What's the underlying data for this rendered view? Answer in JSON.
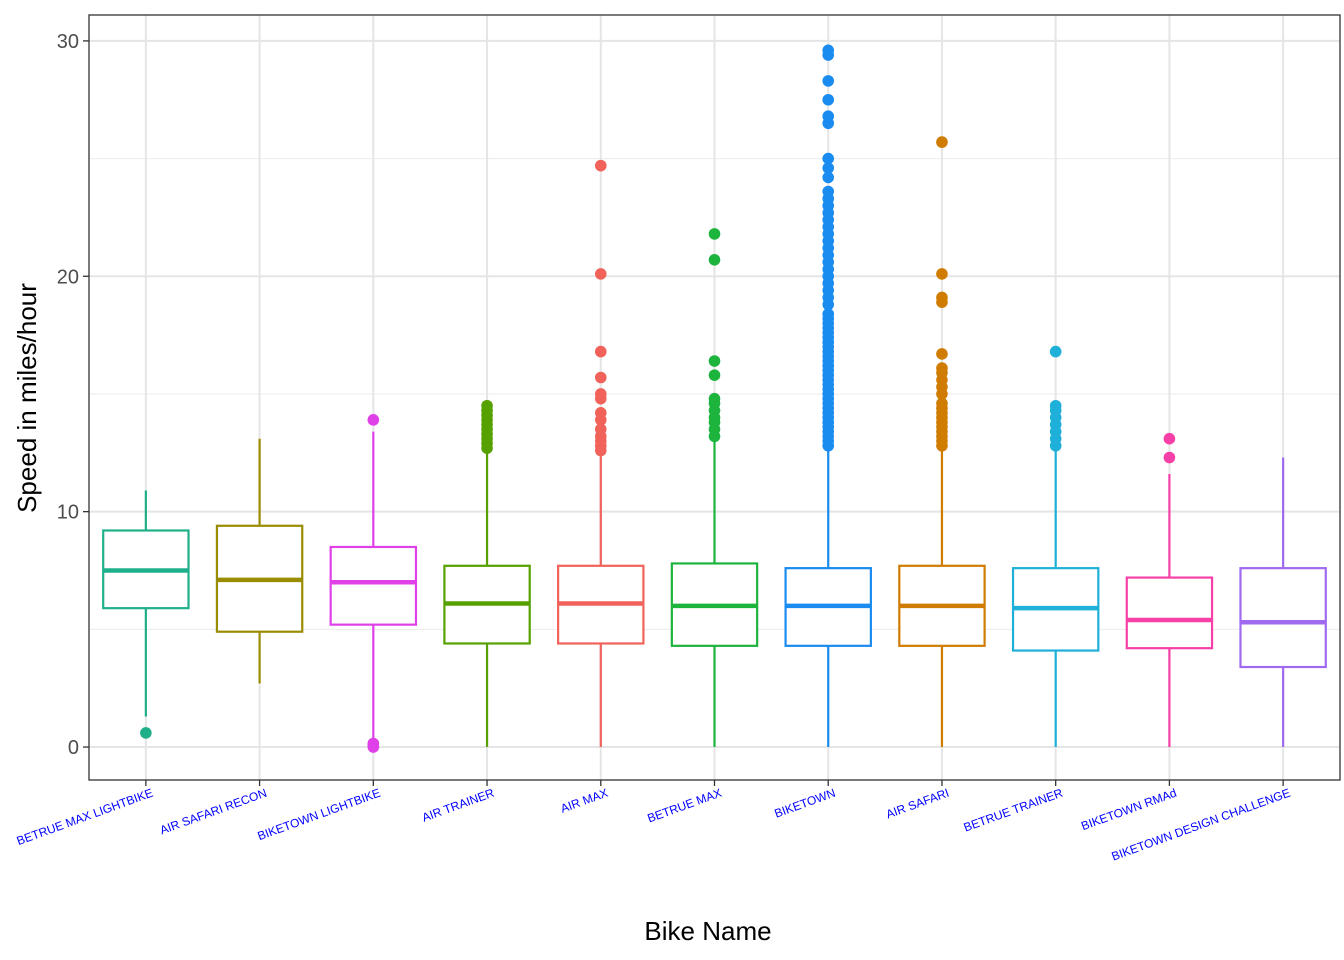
{
  "chart_data": {
    "type": "boxplot",
    "title": "",
    "xlabel": "Bike Name",
    "ylabel": "Speed in miles/hour",
    "ylim": [
      -1.4,
      31.1
    ],
    "yticks": [
      0,
      10,
      20,
      30
    ],
    "grid": true,
    "legend": "none",
    "categories": [
      "BETRUE MAX LIGHTBIKE",
      "AIR SAFARI RECON",
      "BIKETOWN LIGHTBIKE",
      "AIR TRAINER",
      "AIR MAX",
      "BETRUE MAX",
      "BIKETOWN",
      "AIR SAFARI",
      "BETRUE TRAINER",
      "BIKETOWN RMAd",
      "BIKETOWN DESIGN CHALLENGE"
    ],
    "series": [
      {
        "color": "#1fb08a",
        "whisker_low": 1.3,
        "q1": 5.9,
        "median": 7.5,
        "q3": 9.2,
        "whisker_high": 10.9,
        "outliers": [
          0.6
        ]
      },
      {
        "color": "#9a8c00",
        "whisker_low": 2.7,
        "q1": 4.9,
        "median": 7.1,
        "q3": 9.4,
        "whisker_high": 13.1,
        "outliers": []
      },
      {
        "color": "#e040e8",
        "whisker_low": 0.3,
        "q1": 5.2,
        "median": 7.0,
        "q3": 8.5,
        "whisker_high": 13.4,
        "outliers": [
          13.9,
          0.15,
          0.05,
          0.0
        ]
      },
      {
        "color": "#56a000",
        "whisker_low": 0.0,
        "q1": 4.4,
        "median": 6.1,
        "q3": 7.7,
        "whisker_high": 12.6,
        "outliers": [
          12.7,
          12.9,
          13.1,
          13.3,
          13.5,
          13.7,
          13.9,
          14.1,
          14.3,
          14.5
        ]
      },
      {
        "color": "#f0625a",
        "whisker_low": 0.0,
        "q1": 4.4,
        "median": 6.1,
        "q3": 7.7,
        "whisker_high": 12.5,
        "outliers": [
          12.6,
          12.8,
          13.0,
          13.2,
          13.5,
          13.9,
          14.2,
          14.8,
          15.0,
          15.7,
          16.8,
          20.1,
          24.7
        ]
      },
      {
        "color": "#1db43e",
        "whisker_low": 0.0,
        "q1": 4.3,
        "median": 6.0,
        "q3": 7.8,
        "whisker_high": 13.0,
        "outliers": [
          13.2,
          13.5,
          13.8,
          14.0,
          14.3,
          14.6,
          14.8,
          15.8,
          16.4,
          20.7,
          21.8
        ]
      },
      {
        "color": "#1a8cf0",
        "whisker_low": 0.0,
        "q1": 4.3,
        "median": 6.0,
        "q3": 7.6,
        "whisker_high": 12.7,
        "outliers": [
          12.8,
          13.0,
          13.2,
          13.4,
          13.6,
          13.8,
          14.0,
          14.2,
          14.4,
          14.6,
          14.8,
          15.0,
          15.2,
          15.4,
          15.6,
          15.8,
          16.0,
          16.2,
          16.4,
          16.6,
          16.8,
          17.0,
          17.2,
          17.4,
          17.6,
          17.8,
          18.0,
          18.2,
          18.4,
          18.8,
          19.1,
          19.4,
          19.7,
          20.0,
          20.3,
          20.6,
          20.9,
          21.2,
          21.5,
          21.8,
          22.1,
          22.4,
          22.7,
          23.0,
          23.3,
          23.6,
          24.2,
          24.6,
          25.0,
          26.5,
          26.8,
          27.5,
          28.3,
          29.4,
          29.6
        ]
      },
      {
        "color": "#d07c00",
        "whisker_low": 0.0,
        "q1": 4.3,
        "median": 6.0,
        "q3": 7.7,
        "whisker_high": 12.7,
        "outliers": [
          12.8,
          13.0,
          13.2,
          13.4,
          13.6,
          13.8,
          14.0,
          14.2,
          14.4,
          14.6,
          15.0,
          15.3,
          15.6,
          15.9,
          16.1,
          16.7,
          18.9,
          19.1,
          20.1,
          25.7
        ]
      },
      {
        "color": "#1eb0d8",
        "whisker_low": 0.0,
        "q1": 4.1,
        "median": 5.9,
        "q3": 7.6,
        "whisker_high": 12.6,
        "outliers": [
          12.8,
          13.1,
          13.4,
          13.7,
          14.0,
          14.3,
          14.5,
          16.8
        ]
      },
      {
        "color": "#f640a8",
        "whisker_low": 0.0,
        "q1": 4.2,
        "median": 5.4,
        "q3": 7.2,
        "whisker_high": 11.6,
        "outliers": [
          12.3,
          13.1
        ]
      },
      {
        "color": "#a06af0",
        "whisker_low": 0.0,
        "q1": 3.4,
        "median": 5.3,
        "q3": 7.6,
        "whisker_high": 12.3,
        "outliers": []
      }
    ]
  }
}
